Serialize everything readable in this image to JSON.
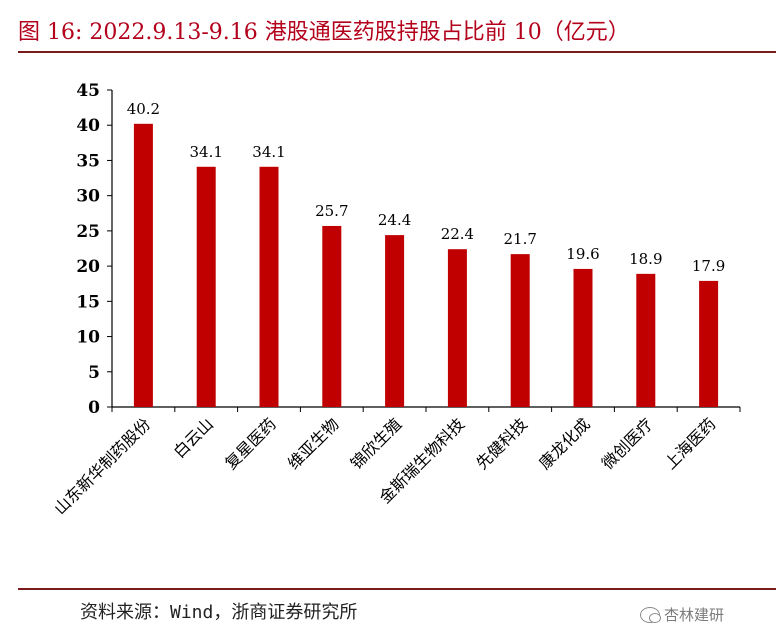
{
  "title": "图 16:    2022.9.13-9.16 港股通医药股持股占比前 10（亿元）",
  "source": "资料来源：Wind，浙商证券研究所",
  "watermark": "杏林建研",
  "colors": {
    "bar": "#c00000",
    "title": "#b3001b",
    "rule": "#7a1b1b"
  },
  "chart_data": {
    "type": "bar",
    "categories": [
      "山东新华制药股份",
      "白云山",
      "复星医药",
      "维亚生物",
      "锦欣生殖",
      "金斯瑞生物科技",
      "先健科技",
      "康龙化成",
      "微创医疗",
      "上海医药"
    ],
    "values": [
      40.2,
      34.1,
      34.1,
      25.7,
      24.4,
      22.4,
      21.7,
      19.6,
      18.9,
      17.9
    ],
    "value_labels": [
      "40.2",
      "34.1",
      "34.1",
      "25.7",
      "24.4",
      "22.4",
      "21.7",
      "19.6",
      "18.9",
      "17.9"
    ],
    "yticks": [
      "0",
      "5",
      "10",
      "15",
      "20",
      "25",
      "30",
      "35",
      "40",
      "45"
    ],
    "ylim": [
      0,
      45
    ],
    "grid": false,
    "legend": "none"
  }
}
